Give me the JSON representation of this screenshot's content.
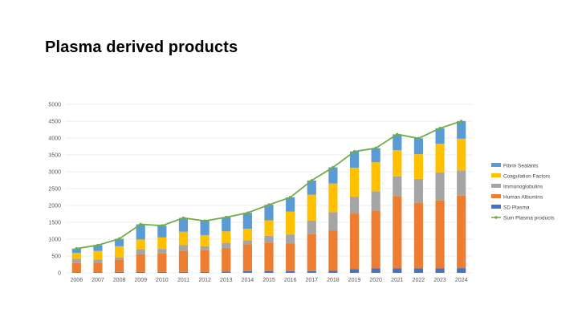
{
  "page": {
    "title": "Plasma derived products"
  },
  "chart_data": {
    "type": "bar",
    "stacked": true,
    "categories": [
      "2006",
      "2007",
      "2008",
      "2009",
      "2010",
      "2011",
      "2012",
      "2013",
      "2014",
      "2015",
      "2016",
      "2017",
      "2018",
      "2019",
      "2020",
      "2021",
      "2022",
      "2023",
      "2024"
    ],
    "ylim": [
      0,
      5000
    ],
    "yticks": [
      0,
      500,
      1000,
      1500,
      2000,
      2500,
      3000,
      3500,
      4000,
      4500,
      5000
    ],
    "grid": true,
    "legend_position": "right",
    "series": [
      {
        "name": "SD Plasma",
        "color": "#4472C4",
        "values": [
          20,
          20,
          30,
          30,
          30,
          30,
          30,
          40,
          50,
          50,
          50,
          50,
          60,
          110,
          130,
          130,
          130,
          130,
          140
        ]
      },
      {
        "name": "Human Albumins",
        "color": "#ED7D31",
        "values": [
          270,
          280,
          350,
          520,
          550,
          630,
          640,
          700,
          800,
          850,
          820,
          1100,
          1200,
          1650,
          1720,
          2150,
          1950,
          2020,
          2150
        ]
      },
      {
        "name": "Immunoglobulins",
        "color": "#A5A5A5",
        "values": [
          130,
          100,
          80,
          150,
          130,
          170,
          120,
          150,
          120,
          200,
          270,
          400,
          540,
          500,
          570,
          580,
          710,
          830,
          750
        ]
      },
      {
        "name": "Coagulation Factors",
        "color": "#FFC000",
        "values": [
          170,
          250,
          330,
          290,
          340,
          390,
          330,
          340,
          340,
          460,
          680,
          770,
          850,
          860,
          860,
          780,
          730,
          850,
          940
        ]
      },
      {
        "name": "Fibrin Sealants",
        "color": "#5B9BD5",
        "values": [
          130,
          170,
          220,
          450,
          350,
          410,
          420,
          420,
          470,
          460,
          420,
          420,
          480,
          480,
          420,
          470,
          470,
          460,
          520
        ]
      }
    ],
    "line": {
      "name": "Sum Plasma products",
      "color": "#70AD47",
      "values": [
        720,
        820,
        1010,
        1440,
        1400,
        1630,
        1540,
        1650,
        1780,
        2020,
        2240,
        2740,
        3130,
        3600,
        3700,
        4110,
        3990,
        4290,
        4500
      ]
    },
    "legend_order": [
      "Fibrin Sealants",
      "Coagulation Factors",
      "Immunoglobulins",
      "Human Albumins",
      "SD Plasma",
      "Sum Plasma products"
    ]
  }
}
